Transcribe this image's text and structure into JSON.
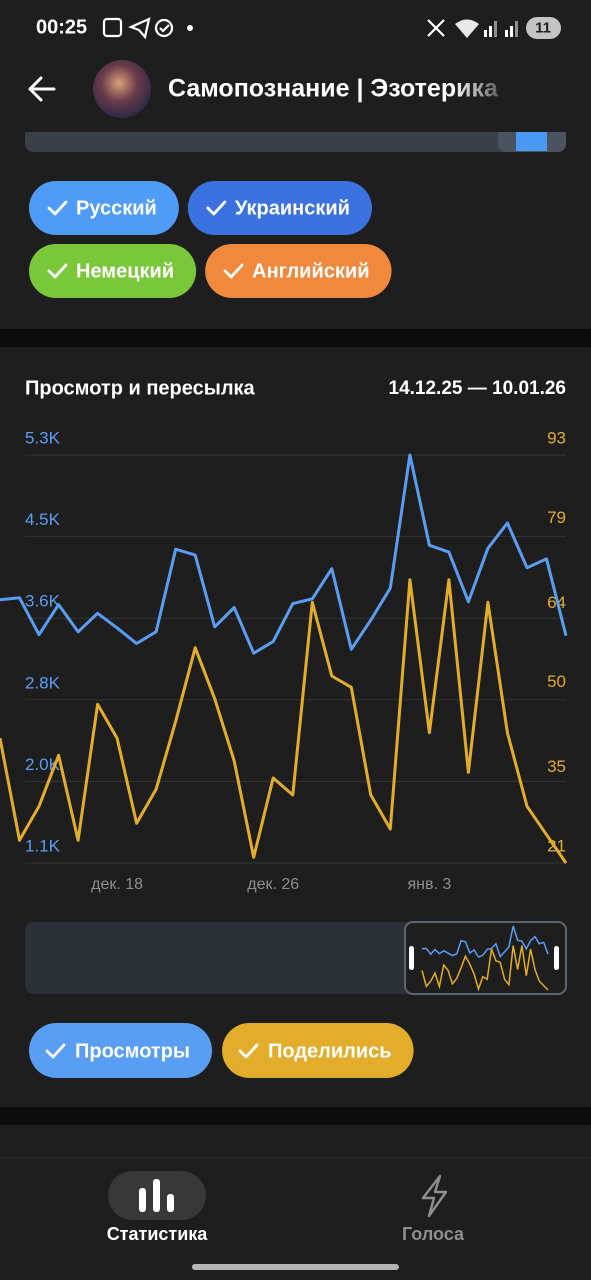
{
  "status_bar": {
    "time": "00:25",
    "badge": "11"
  },
  "header": {
    "title": "Самопознание | Эзотерика"
  },
  "languages": [
    {
      "label": "Русский",
      "color": "#4e9cf6"
    },
    {
      "label": "Украинский",
      "color": "#3b72df"
    },
    {
      "label": "Немецкий",
      "color": "#7ac83a"
    },
    {
      "label": "Английский",
      "color": "#f0893d"
    }
  ],
  "chart_data": {
    "type": "line",
    "title": "Просмотр и пересылка",
    "subtitle": "14.12.25 — 10.01.26",
    "categories": [
      null,
      null,
      null,
      null,
      null,
      null,
      "дек. 18",
      null,
      null,
      null,
      null,
      null,
      null,
      null,
      "дек. 26",
      null,
      null,
      null,
      null,
      null,
      null,
      null,
      "янв. 3",
      null,
      null,
      null,
      null,
      null,
      null,
      null
    ],
    "series": [
      {
        "name": "Просмотры",
        "color": "#5a9ef4",
        "axis": "y",
        "values": [
          3830,
          3850,
          3470,
          3780,
          3500,
          3690,
          3540,
          3380,
          3500,
          4350,
          4290,
          3550,
          3750,
          3280,
          3400,
          3790,
          3840,
          4150,
          3320,
          3620,
          3950,
          5320,
          4390,
          4320,
          3810,
          4360,
          4620,
          4160,
          4250,
          3460
        ]
      },
      {
        "name": "Поделились",
        "color": "#e3ad2c",
        "axis": "y2",
        "values": [
          43,
          25,
          31,
          40,
          25,
          49,
          43,
          28,
          34,
          46,
          59,
          50,
          39,
          22,
          36,
          33,
          67,
          54,
          52,
          33,
          27,
          71,
          44,
          71,
          37,
          67,
          44,
          31,
          26,
          21
        ]
      }
    ],
    "ylim": [
      1120,
      5320
    ],
    "yticks": [
      {
        "value": 1120,
        "label": "1.1K"
      },
      {
        "value": 1960,
        "label": "2.0K"
      },
      {
        "value": 2800,
        "label": "2.8K"
      },
      {
        "value": 3640,
        "label": "3.6K"
      },
      {
        "value": 4480,
        "label": "4.5K"
      },
      {
        "value": 5320,
        "label": "5.3K"
      }
    ],
    "y2lim": [
      21,
      93
    ],
    "y2ticks": [
      21,
      35,
      50,
      64,
      79,
      93
    ],
    "grid": true
  },
  "navigation": {
    "items": [
      {
        "label": "Статистика",
        "active": true
      },
      {
        "label": "Голоса",
        "active": false
      }
    ]
  }
}
